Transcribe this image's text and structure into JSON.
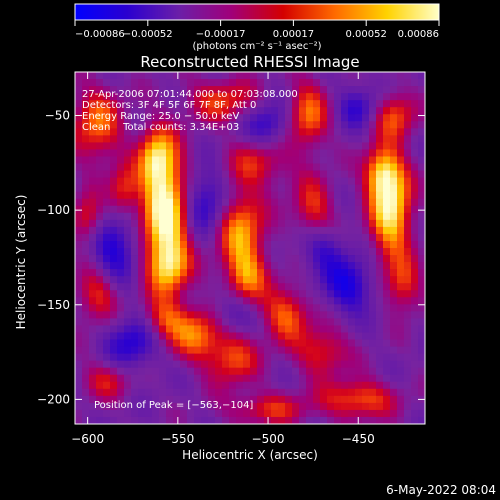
{
  "chart_data": {
    "type": "heatmap",
    "title": "Reconstructed RHESSI Image",
    "xlabel": "Heliocentric X (arcsec)",
    "ylabel": "Heliocentric Y (arcsec)",
    "xlim": [
      -607,
      -413
    ],
    "ylim": [
      -213,
      -27
    ],
    "x_ticks": [
      -600,
      -550,
      -500,
      -450
    ],
    "x_tick_labels": [
      "−600",
      "−550",
      "−500",
      "−450"
    ],
    "y_ticks": [
      -50,
      -100,
      -150,
      -200
    ],
    "y_tick_labels": [
      "−50",
      "−100",
      "−150",
      "−200"
    ],
    "colorbar": {
      "range": [
        -0.00086,
        0.00086
      ],
      "tick_labels": [
        "−0.00086",
        "−0.00052",
        "−0.00017",
        "0.00017",
        "0.00052",
        "0.00086"
      ],
      "unit_label": "(photons cm⁻² s⁻¹ asec⁻²)",
      "colors": [
        "#0000ff",
        "#2a00d0",
        "#6b1fa8",
        "#a0007a",
        "#d40000",
        "#ff6a00",
        "#ffd200",
        "#ffffc8"
      ]
    },
    "annotations": [
      "27-Apr-2006 07:01:44.000 to 07:03:08.000",
      "Detectors: 3F 4F 5F 6F 7F 8F, Att 0",
      "Energy Range: 25.0 − 50.0 keV",
      "Clean    Total counts: 3.34E+03"
    ],
    "peak_label": "Position of Peak = [−563,−104]",
    "peak": [
      -563,
      -104
    ],
    "sources": [
      {
        "x": -557,
        "y": -101,
        "sx": 9,
        "sy": 22,
        "amp": 1.0
      },
      {
        "x": -562,
        "y": -72,
        "sx": 7,
        "sy": 11,
        "amp": 0.6
      },
      {
        "x": -555,
        "y": -130,
        "sx": 8,
        "sy": 10,
        "amp": 0.55
      },
      {
        "x": -558,
        "y": -158,
        "sx": 8,
        "sy": 8,
        "amp": 0.45
      },
      {
        "x": -515,
        "y": -110,
        "sx": 9,
        "sy": 15,
        "amp": 0.65
      },
      {
        "x": -512,
        "y": -135,
        "sx": 8,
        "sy": 10,
        "amp": 0.55
      },
      {
        "x": -505,
        "y": -75,
        "sx": 12,
        "sy": 9,
        "amp": 0.4
      },
      {
        "x": -525,
        "y": -42,
        "sx": 14,
        "sy": 8,
        "amp": 0.45
      },
      {
        "x": -540,
        "y": -165,
        "sx": 10,
        "sy": 10,
        "amp": 0.55
      },
      {
        "x": -520,
        "y": -178,
        "sx": 10,
        "sy": 10,
        "amp": 0.5
      },
      {
        "x": -595,
        "y": -55,
        "sx": 10,
        "sy": 14,
        "amp": 0.55
      },
      {
        "x": -580,
        "y": -90,
        "sx": 6,
        "sy": 9,
        "amp": 0.45
      },
      {
        "x": -600,
        "y": -105,
        "sx": 6,
        "sy": 9,
        "amp": 0.45
      },
      {
        "x": -595,
        "y": -145,
        "sx": 8,
        "sy": 10,
        "amp": 0.45
      },
      {
        "x": -590,
        "y": -190,
        "sx": 10,
        "sy": 7,
        "amp": 0.35
      },
      {
        "x": -478,
        "y": -50,
        "sx": 8,
        "sy": 13,
        "amp": 0.55
      },
      {
        "x": -475,
        "y": -100,
        "sx": 8,
        "sy": 12,
        "amp": 0.45
      },
      {
        "x": -490,
        "y": -155,
        "sx": 9,
        "sy": 10,
        "amp": 0.55
      },
      {
        "x": -470,
        "y": -175,
        "sx": 10,
        "sy": 9,
        "amp": 0.45
      },
      {
        "x": -432,
        "y": -100,
        "sx": 8,
        "sy": 18,
        "amp": 0.9
      },
      {
        "x": -437,
        "y": -80,
        "sx": 7,
        "sy": 9,
        "amp": 0.6
      },
      {
        "x": -430,
        "y": -50,
        "sx": 8,
        "sy": 9,
        "amp": 0.5
      },
      {
        "x": -425,
        "y": -140,
        "sx": 7,
        "sy": 10,
        "amp": 0.45
      },
      {
        "x": -450,
        "y": -200,
        "sx": 14,
        "sy": 7,
        "amp": 0.55
      },
      {
        "x": -500,
        "y": -205,
        "sx": 16,
        "sy": 6,
        "amp": 0.4
      }
    ],
    "sinks": [
      {
        "x": -535,
        "y": -95,
        "sx": 9,
        "sy": 12,
        "amp": 0.55
      },
      {
        "x": -455,
        "y": -140,
        "sx": 10,
        "sy": 10,
        "amp": 0.6
      },
      {
        "x": -585,
        "y": -120,
        "sx": 9,
        "sy": 12,
        "amp": 0.6
      },
      {
        "x": -500,
        "y": -55,
        "sx": 9,
        "sy": 9,
        "amp": 0.5
      },
      {
        "x": -470,
        "y": -120,
        "sx": 9,
        "sy": 9,
        "amp": 0.45
      },
      {
        "x": -575,
        "y": -170,
        "sx": 10,
        "sy": 10,
        "amp": 0.55
      },
      {
        "x": -450,
        "y": -45,
        "sx": 8,
        "sy": 8,
        "amp": 0.45
      },
      {
        "x": -520,
        "y": -155,
        "sx": 8,
        "sy": 8,
        "amp": 0.4
      }
    ]
  },
  "footer": {
    "timestamp": "6-May-2022 08:04"
  }
}
